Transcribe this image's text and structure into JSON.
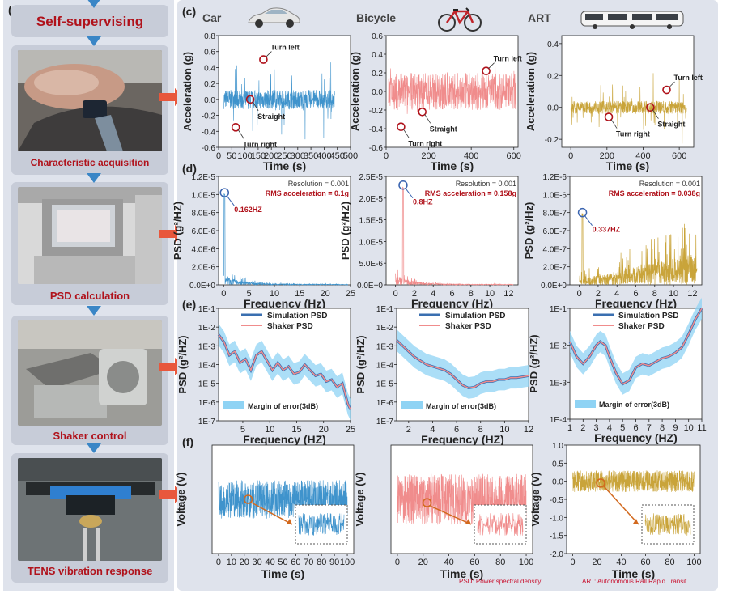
{
  "panel_labels": {
    "b": "(b)",
    "c": "(c)",
    "d": "(d)",
    "e": "(e)",
    "f": "(f)"
  },
  "steps": [
    {
      "label": "Self-supervising"
    },
    {
      "label": "Characteristic acquisition"
    },
    {
      "label": "PSD calculation"
    },
    {
      "label": "Shaker control"
    },
    {
      "label": "TENS vibration response"
    }
  ],
  "vehicles": [
    {
      "name": "Car",
      "icon": "car-icon"
    },
    {
      "name": "Bicycle",
      "icon": "bicycle-icon"
    },
    {
      "name": "ART",
      "icon": "tram-icon"
    }
  ],
  "colors": {
    "car": "#3f93cc",
    "bicycle": "#f08c8c",
    "art": "#c9a43a",
    "marker": "#b0121b",
    "blue_marker": "#3a64b0",
    "orange_marker": "#d2691e",
    "band": "#8fd3f4"
  },
  "footnotes": {
    "psd": "PSD: Power spectral density",
    "art": "ART: Autonomous Rail Rapid Transit"
  },
  "chart_data": [
    {
      "id": "c1",
      "type": "line",
      "xlabel": "Time (s)",
      "ylabel": "Acceleration (g)",
      "xlim": [
        0,
        500
      ],
      "ylim": [
        -0.6,
        0.8
      ],
      "xticks": [
        "0",
        "50",
        "100",
        "150",
        "200",
        "250",
        "300",
        "350",
        "400",
        "450",
        "500"
      ],
      "yticks": [
        "-0.6",
        "-0.4",
        "-0.2",
        "0.0",
        "0.2",
        "0.4",
        "0.6",
        "0.8"
      ],
      "signal": {
        "x_start": 20,
        "x_end": 440,
        "amplitude": 0.12,
        "spikes": 0.45
      },
      "annotations": [
        {
          "text": "Turn left",
          "x": 170,
          "y": 0.5
        },
        {
          "text": "Straight",
          "x": 120,
          "y": 0.0
        },
        {
          "text": "Turn right",
          "x": 65,
          "y": -0.35
        }
      ]
    },
    {
      "id": "c2",
      "type": "line",
      "xlabel": "Time (s)",
      "ylabel": "Acceleration (g)",
      "xlim": [
        0,
        620
      ],
      "ylim": [
        -0.6,
        0.6
      ],
      "xticks": [
        "0",
        "200",
        "400",
        "600"
      ],
      "yticks": [
        "-0.6",
        "-0.4",
        "-0.2",
        "0.0",
        "0.2",
        "0.4",
        "0.6"
      ],
      "signal": {
        "x_start": 10,
        "x_end": 610,
        "amplitude": 0.2,
        "spikes": 0.28
      },
      "annotations": [
        {
          "text": "Turn left",
          "x": 470,
          "y": 0.22
        },
        {
          "text": "Straight",
          "x": 170,
          "y": -0.22
        },
        {
          "text": "Turn right",
          "x": 70,
          "y": -0.38
        }
      ]
    },
    {
      "id": "c3",
      "type": "line",
      "xlabel": "Time (s)",
      "ylabel": "Acceleration (g)",
      "xlim": [
        -50,
        680
      ],
      "ylim": [
        -0.25,
        0.45
      ],
      "xticks": [
        "0",
        "200",
        "400",
        "600"
      ],
      "yticks": [
        "-0.2",
        "0.0",
        "0.2",
        "0.4"
      ],
      "signal": {
        "x_start": 0,
        "x_end": 640,
        "amplitude": 0.04,
        "spikes": 0.2
      },
      "annotations": [
        {
          "text": "Turn left",
          "x": 530,
          "y": 0.11
        },
        {
          "text": "Straight",
          "x": 440,
          "y": 0.0
        },
        {
          "text": "Turn right",
          "x": 210,
          "y": -0.06
        }
      ]
    },
    {
      "id": "d1",
      "type": "line",
      "xlabel": "Frequency (Hz)",
      "ylabel": "PSD (g²/HZ)",
      "xlim": [
        -1,
        25
      ],
      "ylim": [
        0,
        1.2e-05
      ],
      "xticks": [
        "0",
        "5",
        "10",
        "15",
        "20",
        "25"
      ],
      "yticks": [
        "0.0E+0",
        "2.0E-6",
        "4.0E-6",
        "6.0E-6",
        "8.0E-6",
        "1.0E-5",
        "1.2E-5"
      ],
      "resolution": "Resolution = 0.001",
      "rms": "RMS acceleration = 0.1g",
      "peak": {
        "text": "0.162HZ",
        "x": 0.162,
        "y": 1.02e-05
      }
    },
    {
      "id": "d2",
      "type": "line",
      "xlabel": "Frequency (Hz)",
      "ylabel": "PSD (g²/HZ)",
      "xlim": [
        -1,
        13
      ],
      "ylim": [
        0,
        2.5e-05
      ],
      "xticks": [
        "0",
        "2",
        "4",
        "6",
        "8",
        "10",
        "12"
      ],
      "yticks": [
        "0.0E+0",
        "5.0E-6",
        "1.0E-5",
        "1.5E-5",
        "2.0E-5",
        "2.5E-5"
      ],
      "resolution": "Resolution = 0.001",
      "rms": "RMS acceleration = 0.158g",
      "peak": {
        "text": "0.8HZ",
        "x": 0.8,
        "y": 2.3e-05
      }
    },
    {
      "id": "d3",
      "type": "line",
      "xlabel": "Frequency (Hz)",
      "ylabel": "PSD (g²/Hz)",
      "xlim": [
        -1,
        13
      ],
      "ylim": [
        0,
        1.2e-06
      ],
      "xticks": [
        "0",
        "2",
        "4",
        "6",
        "8",
        "10",
        "12"
      ],
      "yticks": [
        "0.0E+0",
        "2.0E-7",
        "4.0E-7",
        "6.0E-7",
        "8.0E-7",
        "1.0E-6",
        "1.2E-6"
      ],
      "resolution": "Resolution = 0.001",
      "rms": "RMS acceleration = 0.038g",
      "peak": {
        "text": "0.337HZ",
        "x": 0.337,
        "y": 8e-07
      }
    },
    {
      "id": "e1",
      "type": "line",
      "scale": "log",
      "xlabel": "Frequency (HZ)",
      "ylabel": "PSD (g²/HZ)",
      "xlim": [
        0.5,
        25
      ],
      "ylim": [
        -7,
        -1
      ],
      "xticks": [
        "5",
        "10",
        "15",
        "20",
        "25"
      ],
      "yticks": [
        "1E-7",
        "1E-6",
        "1E-5",
        "1E-4",
        "1E-3",
        "1E-2",
        "1E-1"
      ],
      "legend": [
        "Simulation PSD",
        "Shaker PSD",
        "Margin of error(3dB)"
      ],
      "curve": [
        [
          0.5,
          -2.4
        ],
        [
          1.5,
          -2.8
        ],
        [
          2.5,
          -3.5
        ],
        [
          3.5,
          -3.3
        ],
        [
          4.5,
          -3.9
        ],
        [
          5.5,
          -3.7
        ],
        [
          6.5,
          -4.3
        ],
        [
          7.5,
          -3.5
        ],
        [
          8.5,
          -3.3
        ],
        [
          9.5,
          -3.8
        ],
        [
          10.5,
          -4.3
        ],
        [
          11.5,
          -3.9
        ],
        [
          12.5,
          -4.3
        ],
        [
          13.5,
          -4.1
        ],
        [
          14.5,
          -4.5
        ],
        [
          15.5,
          -4.4
        ],
        [
          16.5,
          -4.0
        ],
        [
          17.5,
          -4.3
        ],
        [
          18.5,
          -4.6
        ],
        [
          19.5,
          -4.5
        ],
        [
          20.5,
          -4.9
        ],
        [
          21.5,
          -4.8
        ],
        [
          22.5,
          -5.2
        ],
        [
          23.5,
          -5.0
        ],
        [
          24.5,
          -6.1
        ],
        [
          25,
          -6.4
        ]
      ]
    },
    {
      "id": "e2",
      "type": "line",
      "scale": "log",
      "xlabel": "Frequency (HZ)",
      "ylabel": "PSD (g²/HZ)",
      "xlim": [
        1,
        12
      ],
      "ylim": [
        -7,
        -1
      ],
      "xticks": [
        "2",
        "4",
        "6",
        "8",
        "10",
        "12"
      ],
      "yticks": [
        "1E-7",
        "1E-6",
        "1E-5",
        "1E-4",
        "1E-3",
        "1E-2",
        "1E-1"
      ],
      "legend": [
        "Simulation PSD",
        "Shaker PSD",
        "Margin of error(3dB)"
      ],
      "curve": [
        [
          1,
          -2.7
        ],
        [
          1.5,
          -3.0
        ],
        [
          2,
          -3.3
        ],
        [
          2.5,
          -3.6
        ],
        [
          3,
          -3.8
        ],
        [
          3.5,
          -4.0
        ],
        [
          4,
          -4.1
        ],
        [
          4.5,
          -4.2
        ],
        [
          5,
          -4.3
        ],
        [
          5.5,
          -4.5
        ],
        [
          6,
          -4.8
        ],
        [
          6.5,
          -5.1
        ],
        [
          7,
          -5.25
        ],
        [
          7.5,
          -5.2
        ],
        [
          8,
          -5.0
        ],
        [
          8.5,
          -4.9
        ],
        [
          9,
          -4.9
        ],
        [
          9.5,
          -4.8
        ],
        [
          10,
          -4.8
        ],
        [
          10.5,
          -4.7
        ],
        [
          11,
          -4.7
        ],
        [
          11.5,
          -4.65
        ],
        [
          12,
          -4.6
        ]
      ]
    },
    {
      "id": "e3",
      "type": "line",
      "scale": "log",
      "xlabel": "Frequency (HZ)",
      "ylabel": "PSD (g²/HZ)",
      "xlim": [
        1,
        11
      ],
      "ylim": [
        -4,
        -1
      ],
      "xticks": [
        "1",
        "2",
        "3",
        "4",
        "5",
        "6",
        "7",
        "8",
        "9",
        "10",
        "11"
      ],
      "yticks": [
        "1E-4",
        "1E-3",
        "1E-2",
        "1E-1"
      ],
      "legend": [
        "Simulation PSD",
        "Shaker PSD",
        "Margin of error(3dB)"
      ],
      "curve": [
        [
          1,
          -1.9
        ],
        [
          1.5,
          -2.3
        ],
        [
          2,
          -2.5
        ],
        [
          2.5,
          -2.3
        ],
        [
          3,
          -2.0
        ],
        [
          3.3,
          -1.9
        ],
        [
          3.7,
          -2.0
        ],
        [
          4,
          -2.3
        ],
        [
          4.5,
          -2.75
        ],
        [
          5,
          -3.05
        ],
        [
          5.5,
          -2.95
        ],
        [
          6,
          -2.6
        ],
        [
          6.5,
          -2.5
        ],
        [
          7,
          -2.55
        ],
        [
          7.5,
          -2.45
        ],
        [
          8,
          -2.35
        ],
        [
          8.5,
          -2.3
        ],
        [
          9,
          -2.2
        ],
        [
          9.5,
          -2.05
        ],
        [
          10,
          -1.7
        ],
        [
          10.5,
          -1.3
        ],
        [
          11,
          -1.0
        ]
      ]
    },
    {
      "id": "f1",
      "type": "line",
      "xlabel": "Time (s)",
      "ylabel": "Voltage (V)",
      "xlim": [
        -5,
        105
      ],
      "ylim": [
        -4.5,
        4.5
      ],
      "xticks": [
        "0",
        "10",
        "20",
        "30",
        "40",
        "50",
        "60",
        "70",
        "80",
        "90",
        "100"
      ],
      "yticks": [],
      "signal": {
        "x_start": 0,
        "x_end": 100,
        "amplitude": 1.6,
        "spikes": 0.6
      },
      "marker": {
        "x": 23,
        "y": 0.0
      }
    },
    {
      "id": "f2",
      "type": "line",
      "xlabel": "Time (s)",
      "ylabel": "Voltage (V)",
      "xlim": [
        -5,
        105
      ],
      "ylim": [
        -3.2,
        3.2
      ],
      "xticks": [
        "0",
        "20",
        "40",
        "60",
        "80",
        "100"
      ],
      "yticks": [],
      "signal": {
        "x_start": 0,
        "x_end": 100,
        "amplitude": 1.5,
        "spikes": 0.5
      },
      "marker": {
        "x": 23,
        "y": -0.2
      }
    },
    {
      "id": "f3",
      "type": "line",
      "xlabel": "Time (s)",
      "ylabel": "Voltage (V)",
      "xlim": [
        -5,
        105
      ],
      "ylim": [
        -2.0,
        1.0
      ],
      "xticks": [
        "0",
        "20",
        "40",
        "60",
        "80",
        "100"
      ],
      "yticks": [
        "-2.0",
        "-1.5",
        "-1.0",
        "-0.5",
        "0.0",
        "0.5",
        "1.0"
      ],
      "signal": {
        "x_start": 0,
        "x_end": 100,
        "amplitude": 0.3,
        "spikes": 0.25
      },
      "marker": {
        "x": 23,
        "y": -0.05
      }
    }
  ]
}
